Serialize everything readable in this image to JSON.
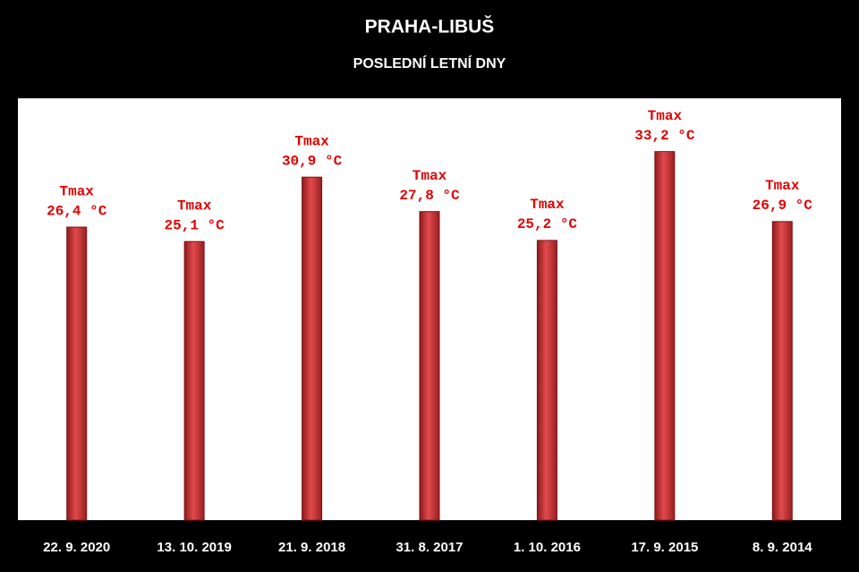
{
  "chart_data": {
    "type": "bar",
    "title": "PRAHA-LIBUŠ",
    "subtitle": "POSLEDNÍ LETNÍ DNY",
    "categories": [
      "22. 9. 2020",
      "13. 10. 2019",
      "21. 9. 2018",
      "31. 8. 2017",
      "1. 10. 2016",
      "17. 9. 2015",
      "8. 9. 2014"
    ],
    "series": [
      {
        "name": "Tmax",
        "color": "#d9363a",
        "values": [
          26.4,
          25.1,
          30.9,
          27.8,
          25.2,
          33.2,
          26.9
        ],
        "value_labels": [
          "26,4 °C",
          "25,1 °C",
          "30,9 °C",
          "27,8 °C",
          "25,2 °C",
          "33,2 °C",
          "26,9 °C"
        ]
      }
    ],
    "ylim": [
      0,
      38
    ]
  }
}
